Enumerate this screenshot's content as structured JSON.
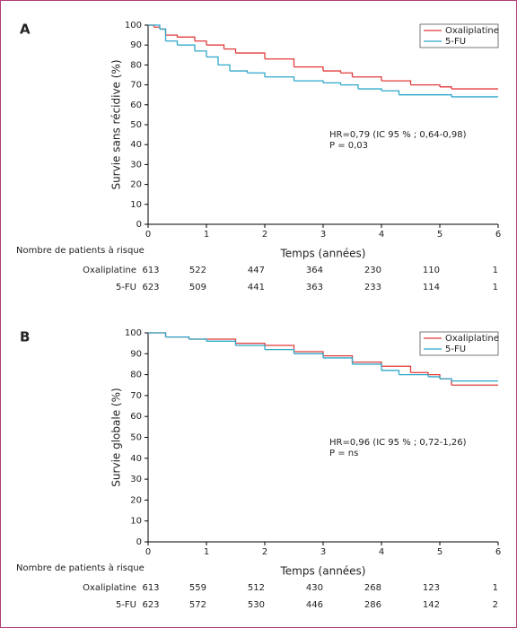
{
  "chart_data": [
    {
      "type": "line",
      "panel": "A",
      "y_label": "Survie sans récidive (%)",
      "x_label": "Temps (années)",
      "xlim": [
        0,
        6
      ],
      "xticks": [
        0,
        1,
        2,
        3,
        4,
        5,
        6
      ],
      "ylim": [
        0,
        100
      ],
      "yticks": [
        0,
        10,
        20,
        30,
        40,
        50,
        60,
        70,
        80,
        90,
        100
      ],
      "series": [
        {
          "name": "Oxaliplatine",
          "color": "#e23b3b",
          "x": [
            0,
            0.1,
            0.2,
            0.3,
            0.5,
            0.8,
            1,
            1.3,
            1.5,
            2,
            2.5,
            3,
            3.3,
            3.5,
            4,
            4.5,
            5,
            5.2,
            6
          ],
          "values": [
            100,
            99,
            98,
            95,
            94,
            92,
            90,
            88,
            86,
            83,
            79,
            77,
            76,
            74,
            72,
            70,
            69,
            68,
            68
          ]
        },
        {
          "name": "5-FU",
          "color": "#2ea8c9",
          "x": [
            0,
            0.2,
            0.3,
            0.5,
            0.8,
            1,
            1.2,
            1.4,
            1.7,
            2,
            2.5,
            3,
            3.3,
            3.6,
            4,
            4.3,
            5,
            5.2,
            6
          ],
          "values": [
            100,
            98,
            92,
            90,
            87,
            84,
            80,
            77,
            76,
            74,
            72,
            71,
            70,
            68,
            67,
            65,
            65,
            64,
            64
          ]
        }
      ],
      "annotations": [
        "HR=0,79 (IC 95 % ; 0,64-0,98)",
        "P = 0,03"
      ],
      "risk_table": {
        "title": "Nombre de patients à risque",
        "rows": [
          {
            "name": "Oxaliplatine",
            "values": [
              613,
              522,
              447,
              364,
              230,
              110,
              1
            ]
          },
          {
            "name": "5-FU",
            "values": [
              623,
              509,
              441,
              363,
              233,
              114,
              1
            ]
          }
        ]
      }
    },
    {
      "type": "line",
      "panel": "B",
      "y_label": "Survie globale (%)",
      "x_label": "Temps (années)",
      "xlim": [
        0,
        6
      ],
      "xticks": [
        0,
        1,
        2,
        3,
        4,
        5,
        6
      ],
      "ylim": [
        0,
        100
      ],
      "yticks": [
        0,
        10,
        20,
        30,
        40,
        50,
        60,
        70,
        80,
        90,
        100
      ],
      "series": [
        {
          "name": "Oxaliplatine",
          "color": "#e23b3b",
          "x": [
            0,
            0.3,
            0.7,
            1,
            1.5,
            2,
            2.5,
            3,
            3.5,
            4,
            4.5,
            4.8,
            5,
            5.2,
            6
          ],
          "values": [
            100,
            98,
            97,
            97,
            95,
            94,
            91,
            89,
            86,
            84,
            81,
            80,
            78,
            75,
            75
          ]
        },
        {
          "name": "5-FU",
          "color": "#2ea8c9",
          "x": [
            0,
            0.3,
            0.7,
            1,
            1.5,
            2,
            2.5,
            3,
            3.5,
            4,
            4.3,
            4.8,
            5,
            5.2,
            6
          ],
          "values": [
            100,
            98,
            97,
            96,
            94,
            92,
            90,
            88,
            85,
            82,
            80,
            79,
            78,
            77,
            77
          ]
        }
      ],
      "annotations": [
        "HR=0,96 (IC 95 % ; 0,72-1,26)",
        "P = ns"
      ],
      "risk_table": {
        "title": "Nombre de patients à risque",
        "rows": [
          {
            "name": "Oxaliplatine",
            "values": [
              613,
              559,
              512,
              430,
              268,
              123,
              1
            ]
          },
          {
            "name": "5-FU",
            "values": [
              623,
              572,
              530,
              446,
              286,
              142,
              2
            ]
          }
        ]
      }
    }
  ]
}
